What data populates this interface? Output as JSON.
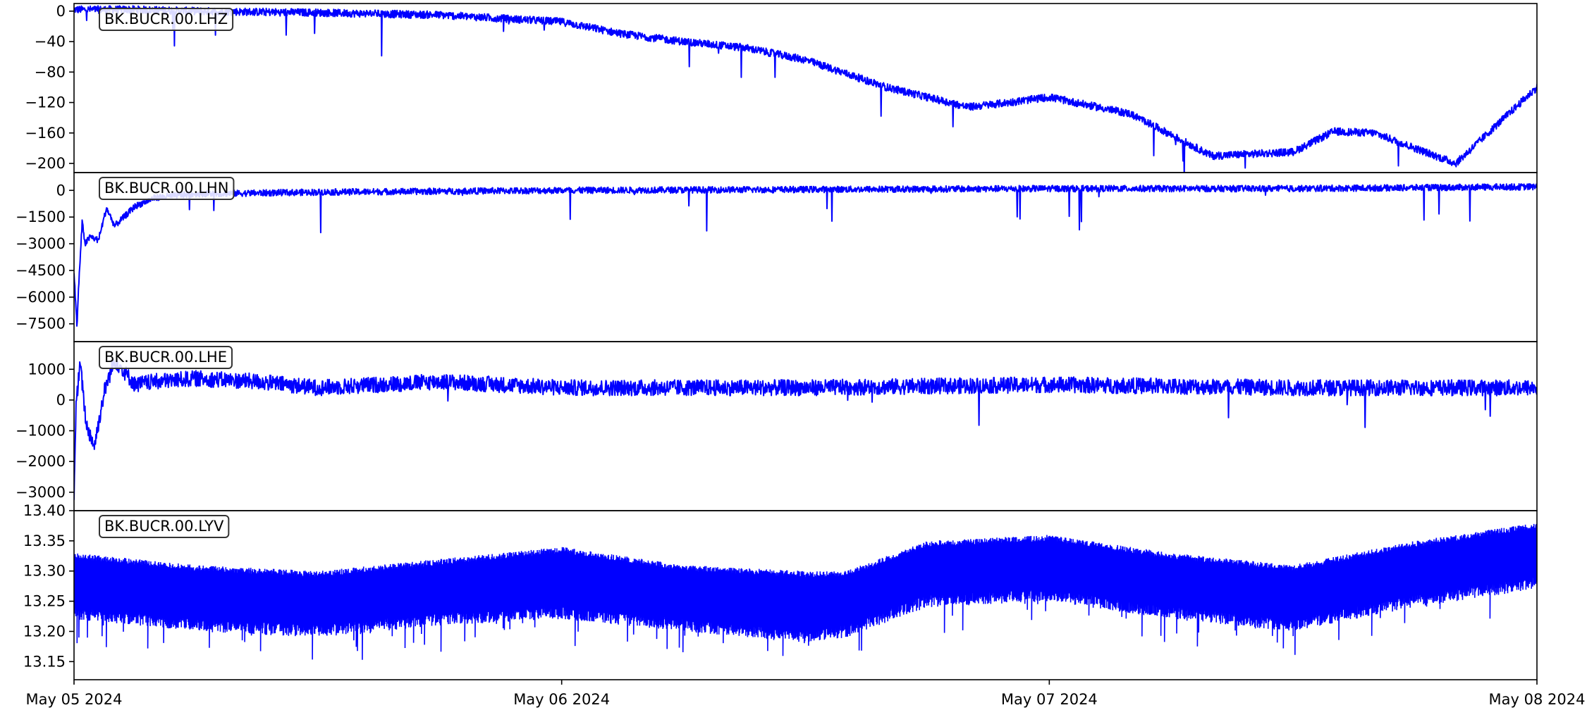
{
  "chart_data": [
    {
      "type": "line",
      "label": "BK.BUCR.00.LHZ",
      "color": "#0000ff",
      "ylim": [
        -212,
        10
      ],
      "yticks": [
        0,
        -40,
        -80,
        -120,
        -160,
        -200
      ],
      "ytick_labels": [
        "0",
        "−40",
        "−80",
        "−120",
        "−160",
        "−200"
      ],
      "x_hours": [
        0,
        3,
        6,
        9,
        12,
        18,
        24,
        27,
        30,
        33,
        36,
        40,
        44,
        46,
        48,
        52,
        56,
        60,
        62,
        64,
        68,
        72
      ],
      "values": [
        2,
        2,
        0,
        -1,
        -2,
        -5,
        -14,
        -30,
        -40,
        -48,
        -64,
        -100,
        -126,
        -120,
        -113,
        -135,
        -190,
        -185,
        -158,
        -160,
        -200,
        -100
      ],
      "noise": 5
    },
    {
      "type": "line",
      "label": "BK.BUCR.00.LHN",
      "color": "#0000ff",
      "ylim": [
        -8500,
        1000
      ],
      "yticks": [
        0,
        -1500,
        -3000,
        -4500,
        -6000,
        -7500
      ],
      "ytick_labels": [
        "0",
        "−1500",
        "−3000",
        "−4500",
        "−6000",
        "−7500"
      ],
      "x_hours": [
        0,
        0.15,
        0.2,
        0.4,
        0.55,
        0.8,
        1.2,
        1.6,
        2,
        3,
        4,
        6,
        12,
        24,
        36,
        48,
        60,
        72
      ],
      "values": [
        -4600,
        -7800,
        -6000,
        -1800,
        -3000,
        -2600,
        -2800,
        -1000,
        -2000,
        -900,
        -400,
        -200,
        -100,
        0,
        50,
        100,
        100,
        200
      ],
      "noise": 180
    },
    {
      "type": "line",
      "label": "BK.BUCR.00.LHE",
      "color": "#0000ff",
      "ylim": [
        -3600,
        1900
      ],
      "yticks": [
        1000,
        0,
        -1000,
        -2000,
        -3000
      ],
      "ytick_labels": [
        "1000",
        "0",
        "−1000",
        "−2000",
        "−3000"
      ],
      "x_hours": [
        0,
        0.1,
        0.3,
        0.6,
        1,
        1.5,
        2,
        3,
        4,
        6,
        9,
        12,
        18,
        24,
        36,
        48,
        60,
        72
      ],
      "values": [
        -3000,
        -200,
        1200,
        -800,
        -1500,
        300,
        1300,
        500,
        600,
        700,
        600,
        400,
        600,
        400,
        400,
        500,
        400,
        400
      ],
      "noise": 260
    },
    {
      "type": "line",
      "label": "BK.BUCR.00.LYV",
      "color": "#0000ff",
      "ylim": [
        13.12,
        13.4
      ],
      "yticks": [
        13.4,
        13.35,
        13.3,
        13.25,
        13.2,
        13.15
      ],
      "ytick_labels": [
        "13.40",
        "13.35",
        "13.30",
        "13.25",
        "13.20",
        "13.15"
      ],
      "x_hours": [
        0,
        6,
        12,
        18,
        24,
        30,
        36,
        38,
        42,
        48,
        54,
        60,
        66,
        72
      ],
      "upper": [
        13.33,
        13.31,
        13.3,
        13.32,
        13.34,
        13.31,
        13.3,
        13.3,
        13.35,
        13.36,
        13.33,
        13.31,
        13.35,
        13.38
      ],
      "lower": [
        13.22,
        13.2,
        13.19,
        13.21,
        13.22,
        13.2,
        13.18,
        13.19,
        13.24,
        13.25,
        13.22,
        13.2,
        13.24,
        13.27
      ]
    }
  ],
  "x_axis": {
    "range_hours": [
      0,
      72
    ],
    "ticks_hours": [
      0,
      24,
      48,
      72
    ],
    "tick_labels": [
      "May 05 2024",
      "May 06 2024",
      "May 07 2024",
      "May 08 2024"
    ]
  }
}
